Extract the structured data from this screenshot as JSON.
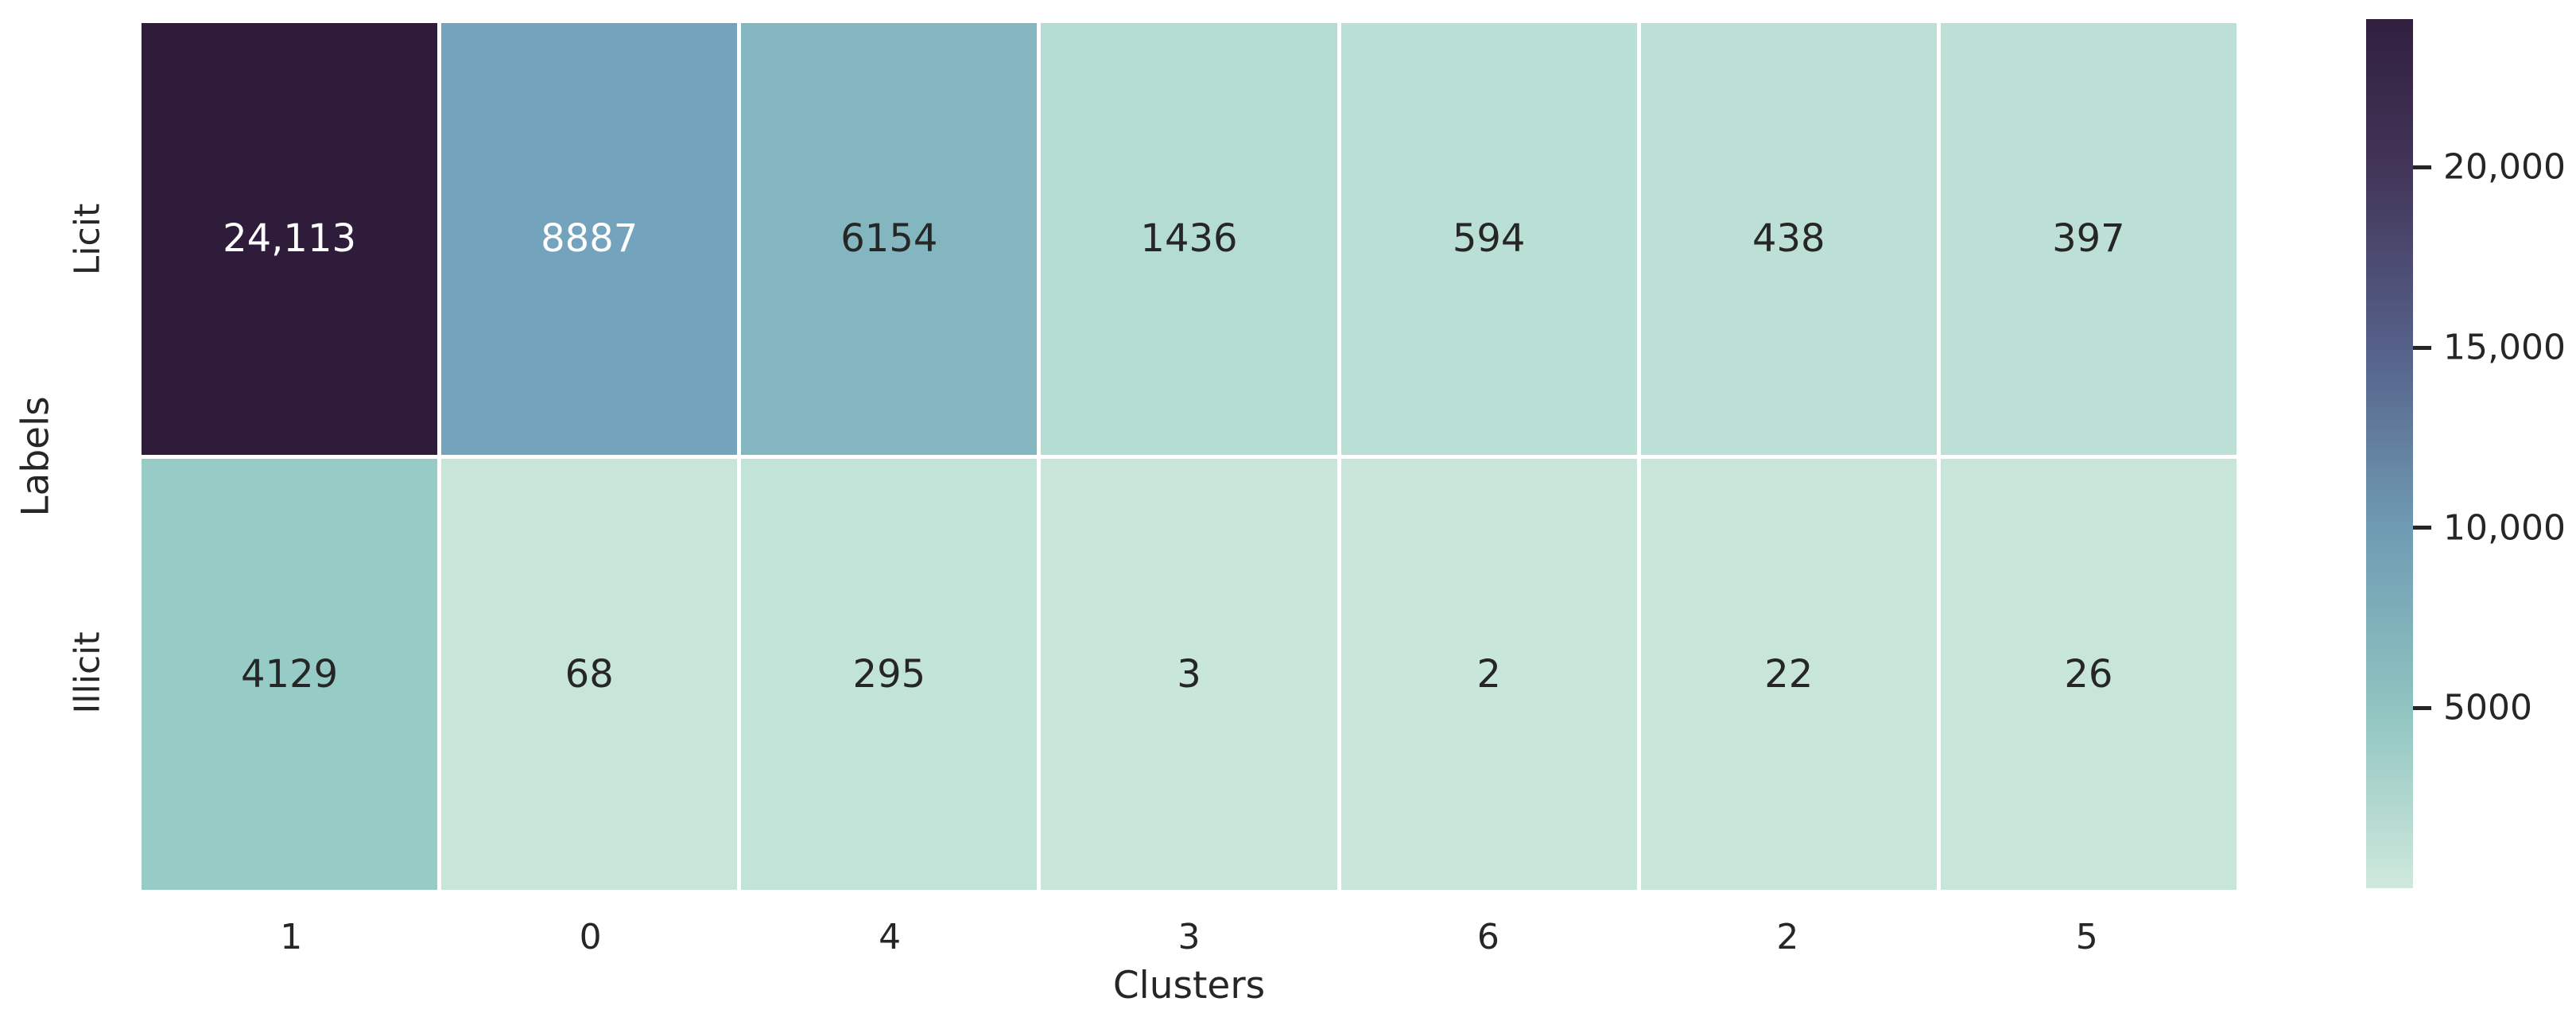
{
  "chart_data": {
    "type": "heatmap",
    "title": "",
    "xlabel": "Clusters",
    "ylabel": "Labels",
    "columns": [
      "1",
      "0",
      "4",
      "3",
      "6",
      "2",
      "5"
    ],
    "rows": [
      "Licit",
      "Illicit"
    ],
    "values": [
      [
        24113,
        8887,
        6154,
        1436,
        594,
        438,
        397
      ],
      [
        4129,
        68,
        295,
        3,
        2,
        22,
        26
      ]
    ],
    "cell_labels": [
      [
        "24,113",
        "8887",
        "6154",
        "1436",
        "594",
        "438",
        "397"
      ],
      [
        "4129",
        "68",
        "295",
        "3",
        "2",
        "22",
        "26"
      ]
    ],
    "cell_colors": [
      [
        "#2f1c3b",
        "#74a3bd",
        "#84b6c0",
        "#b5dcd2",
        "#badfd4",
        "#bce0d5",
        "#bce0d6"
      ],
      [
        "#97cbc5",
        "#c7e5d8",
        "#c2e3d7",
        "#c8e6d9",
        "#c8e6d9",
        "#c7e5d8",
        "#c7e5d8"
      ]
    ],
    "cell_text_colors": [
      [
        "#ffffff",
        "#ffffff",
        "#262626",
        "#262626",
        "#262626",
        "#262626",
        "#262626"
      ],
      [
        "#262626",
        "#262626",
        "#262626",
        "#262626",
        "#262626",
        "#262626",
        "#262626"
      ]
    ],
    "grid_line_color": "#ffffff",
    "text_color": "#262626",
    "legend_position": "colorbar-right",
    "colorbar": {
      "tick_labels": [
        "20,000",
        "15,000",
        "10,000",
        "5000"
      ],
      "tick_values": [
        20000,
        15000,
        10000,
        5000
      ],
      "tick_fracs_from_top": [
        0.1706,
        0.3779,
        0.5853,
        0.7926
      ],
      "gradient_stops": [
        {
          "pos": 0.0,
          "color": "#cfe9dc"
        },
        {
          "pos": 0.207,
          "color": "#8fc4c0"
        },
        {
          "pos": 0.414,
          "color": "#6f9bb3"
        },
        {
          "pos": 0.622,
          "color": "#556089"
        },
        {
          "pos": 0.829,
          "color": "#423558"
        },
        {
          "pos": 1.0,
          "color": "#311f3e"
        }
      ]
    }
  }
}
